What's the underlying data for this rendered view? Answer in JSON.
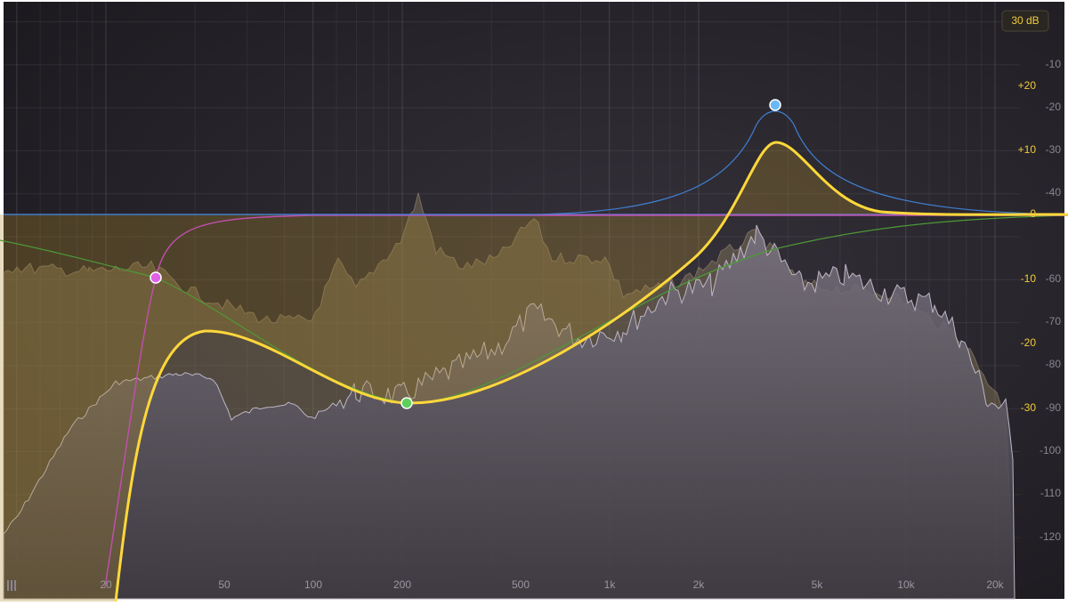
{
  "range_button": "30 dB",
  "frequency_labels": [
    "20",
    "50",
    "100",
    "200",
    "500",
    "1k",
    "2k",
    "5k",
    "10k",
    "20k"
  ],
  "gain_labels": [
    "+20",
    "+10",
    "0",
    "-10",
    "-20",
    "-30"
  ],
  "level_labels": [
    "-10",
    "-20",
    "-30",
    "-40",
    "-60",
    "-70",
    "-80",
    "-90",
    "-100",
    "-110",
    "-120"
  ]
}
